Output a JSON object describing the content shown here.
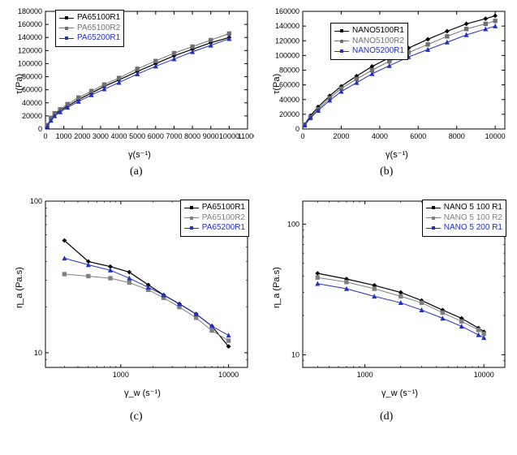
{
  "figure": {
    "background_color": "#ffffff",
    "axis_color": "#000000",
    "tick_font_size": 9,
    "label_font_size": 11,
    "caption_font_size": 14,
    "caption_font_family": "Times New Roman",
    "legend_font_size": 10,
    "legend_border_color": "#000000"
  },
  "panels": {
    "a": {
      "caption": "(a)",
      "type": "line",
      "x_label": "γ(s⁻¹)",
      "y_label": "τ(Pa)",
      "x_scale": "linear",
      "y_scale": "linear",
      "xlim": [
        0,
        11000
      ],
      "ylim": [
        0,
        180000
      ],
      "x_ticks": [
        0,
        1000,
        2000,
        3000,
        4000,
        5000,
        6000,
        7000,
        8000,
        9000,
        10000,
        11000
      ],
      "y_ticks": [
        0,
        20000,
        40000,
        60000,
        80000,
        100000,
        120000,
        140000,
        160000,
        180000
      ],
      "series": [
        {
          "name": "PA65100R1",
          "color": "#000000",
          "marker": "diamond",
          "line_width": 1.2,
          "data": [
            [
              100,
              5000
            ],
            [
              300,
              15000
            ],
            [
              500,
              22000
            ],
            [
              800,
              28000
            ],
            [
              1200,
              35000
            ],
            [
              1800,
              45000
            ],
            [
              2500,
              55000
            ],
            [
              3200,
              65000
            ],
            [
              4000,
              75000
            ],
            [
              5000,
              88000
            ],
            [
              6000,
              100000
            ],
            [
              7000,
              112000
            ],
            [
              8000,
              122000
            ],
            [
              9000,
              132000
            ],
            [
              10000,
              140000
            ]
          ]
        },
        {
          "name": "PA65100R2",
          "color": "#707070",
          "marker": "square",
          "line_width": 1.0,
          "data": [
            [
              100,
              6000
            ],
            [
              300,
              17000
            ],
            [
              500,
              24000
            ],
            [
              800,
              30000
            ],
            [
              1200,
              38000
            ],
            [
              1800,
              48000
            ],
            [
              2500,
              58000
            ],
            [
              3200,
              68000
            ],
            [
              4000,
              78000
            ],
            [
              5000,
              92000
            ],
            [
              6000,
              104000
            ],
            [
              7000,
              116000
            ],
            [
              8000,
              126000
            ],
            [
              9000,
              136000
            ],
            [
              10000,
              146000
            ]
          ]
        },
        {
          "name": "PA65200R1",
          "color": "#2030c0",
          "marker": "triangle",
          "line_width": 1.0,
          "data": [
            [
              100,
              4000
            ],
            [
              300,
              13000
            ],
            [
              500,
              20000
            ],
            [
              800,
              26000
            ],
            [
              1200,
              33000
            ],
            [
              1800,
              42000
            ],
            [
              2500,
              52000
            ],
            [
              3200,
              61000
            ],
            [
              4000,
              71000
            ],
            [
              5000,
              84000
            ],
            [
              6000,
              96000
            ],
            [
              7000,
              107000
            ],
            [
              8000,
              118000
            ],
            [
              9000,
              128000
            ],
            [
              10000,
              138000
            ]
          ]
        }
      ],
      "legend_position": "top-left"
    },
    "b": {
      "caption": "(b)",
      "type": "line",
      "x_label": "γ(s⁻¹)",
      "y_label": "τ(Pa)",
      "x_scale": "linear",
      "y_scale": "linear",
      "xlim": [
        0,
        10500
      ],
      "ylim": [
        0,
        160000
      ],
      "x_ticks": [
        0,
        2000,
        4000,
        6000,
        8000,
        10000
      ],
      "y_ticks": [
        0,
        20000,
        40000,
        60000,
        80000,
        100000,
        120000,
        140000,
        160000
      ],
      "series": [
        {
          "name": "NANO5100R1",
          "color": "#000000",
          "marker": "diamond",
          "line_width": 1.2,
          "data": [
            [
              100,
              6000
            ],
            [
              400,
              18000
            ],
            [
              800,
              30000
            ],
            [
              1400,
              45000
            ],
            [
              2000,
              58000
            ],
            [
              2800,
              72000
            ],
            [
              3600,
              85000
            ],
            [
              4500,
              97000
            ],
            [
              5500,
              110000
            ],
            [
              6500,
              122000
            ],
            [
              7500,
              133000
            ],
            [
              8500,
              143000
            ],
            [
              9500,
              150000
            ],
            [
              10000,
              154000
            ]
          ]
        },
        {
          "name": "NANO5100R2",
          "color": "#707070",
          "marker": "square",
          "line_width": 1.0,
          "data": [
            [
              100,
              5500
            ],
            [
              400,
              16000
            ],
            [
              800,
              27000
            ],
            [
              1400,
              42000
            ],
            [
              2000,
              55000
            ],
            [
              2800,
              68000
            ],
            [
              3600,
              80000
            ],
            [
              4500,
              92000
            ],
            [
              5500,
              104000
            ],
            [
              6500,
              115000
            ],
            [
              7500,
              126000
            ],
            [
              8500,
              136000
            ],
            [
              9500,
              143000
            ],
            [
              10000,
              147000
            ]
          ]
        },
        {
          "name": "NANO5200R1",
          "color": "#2030c0",
          "marker": "triangle",
          "line_width": 1.0,
          "data": [
            [
              100,
              5000
            ],
            [
              400,
              15000
            ],
            [
              800,
              25000
            ],
            [
              1400,
              39000
            ],
            [
              2000,
              51000
            ],
            [
              2800,
              63000
            ],
            [
              3600,
              75000
            ],
            [
              4500,
              86000
            ],
            [
              5500,
              98000
            ],
            [
              6500,
              108000
            ],
            [
              7500,
              118000
            ],
            [
              8500,
              128000
            ],
            [
              9500,
              136000
            ],
            [
              10000,
              140000
            ]
          ]
        }
      ],
      "legend_position": "top-left-inset"
    },
    "c": {
      "caption": "(c)",
      "type": "line",
      "x_label": "γ_w (s⁻¹)",
      "y_label": "η_a (Pa.s)",
      "x_scale": "log",
      "y_scale": "log",
      "xlim": [
        200,
        15000
      ],
      "ylim": [
        8,
        100
      ],
      "x_ticks": [
        1000,
        10000
      ],
      "x_tick_labels": [
        "1000",
        "10000"
      ],
      "y_ticks": [
        10,
        100
      ],
      "y_tick_labels": [
        "10",
        "100"
      ],
      "series": [
        {
          "name": "PA65100R1",
          "color": "#000000",
          "marker": "diamond",
          "line_width": 1.2,
          "data": [
            [
              300,
              55
            ],
            [
              500,
              40
            ],
            [
              800,
              37
            ],
            [
              1200,
              34
            ],
            [
              1800,
              28
            ],
            [
              2500,
              24
            ],
            [
              3500,
              21
            ],
            [
              5000,
              18
            ],
            [
              7000,
              15
            ],
            [
              10000,
              11
            ]
          ]
        },
        {
          "name": "PA65100R2",
          "color": "#808080",
          "marker": "square",
          "line_width": 1.0,
          "data": [
            [
              300,
              33
            ],
            [
              500,
              32
            ],
            [
              800,
              31
            ],
            [
              1200,
              29
            ],
            [
              1800,
              26
            ],
            [
              2500,
              23
            ],
            [
              3500,
              20
            ],
            [
              5000,
              17
            ],
            [
              7000,
              14
            ],
            [
              10000,
              12
            ]
          ]
        },
        {
          "name": "PA65200R1",
          "color": "#2030c0",
          "marker": "triangle",
          "line_width": 1.0,
          "data": [
            [
              300,
              42
            ],
            [
              500,
              38
            ],
            [
              800,
              35
            ],
            [
              1200,
              31
            ],
            [
              1800,
              27
            ],
            [
              2500,
              24
            ],
            [
              3500,
              21
            ],
            [
              5000,
              18
            ],
            [
              7000,
              15
            ],
            [
              10000,
              13
            ]
          ]
        }
      ],
      "legend_position": "top-right"
    },
    "d": {
      "caption": "(d)",
      "type": "line",
      "x_label": "γ_w (s⁻¹)",
      "y_label": "η_a (Pa.s)",
      "x_scale": "log",
      "y_scale": "log",
      "xlim": [
        300,
        15000
      ],
      "ylim": [
        8,
        150
      ],
      "x_ticks": [
        1000,
        10000
      ],
      "x_tick_labels": [
        "1000",
        "10000"
      ],
      "y_ticks": [
        10,
        100
      ],
      "y_tick_labels": [
        "10",
        "100"
      ],
      "series": [
        {
          "name": "NANO 5 100 R1",
          "color": "#000000",
          "marker": "diamond",
          "line_width": 1.2,
          "data": [
            [
              400,
              42
            ],
            [
              700,
              38
            ],
            [
              1200,
              34
            ],
            [
              2000,
              30
            ],
            [
              3000,
              26
            ],
            [
              4500,
              22
            ],
            [
              6500,
              19
            ],
            [
              9000,
              16
            ],
            [
              10000,
              15
            ]
          ]
        },
        {
          "name": "NANO 5 100 R2",
          "color": "#808080",
          "marker": "square",
          "line_width": 1.0,
          "data": [
            [
              400,
              39
            ],
            [
              700,
              36
            ],
            [
              1200,
              32
            ],
            [
              2000,
              28
            ],
            [
              3000,
              25
            ],
            [
              4500,
              21
            ],
            [
              6500,
              18
            ],
            [
              9000,
              15.5
            ],
            [
              10000,
              14.5
            ]
          ]
        },
        {
          "name": "NANO 5 200 R1",
          "color": "#2030c0",
          "marker": "triangle",
          "line_width": 1.0,
          "data": [
            [
              400,
              35
            ],
            [
              700,
              32
            ],
            [
              1200,
              28
            ],
            [
              2000,
              25
            ],
            [
              3000,
              22
            ],
            [
              4500,
              19
            ],
            [
              6500,
              16.5
            ],
            [
              9000,
              14.2
            ],
            [
              10000,
              13.5
            ]
          ]
        }
      ],
      "legend_position": "top-right"
    }
  }
}
